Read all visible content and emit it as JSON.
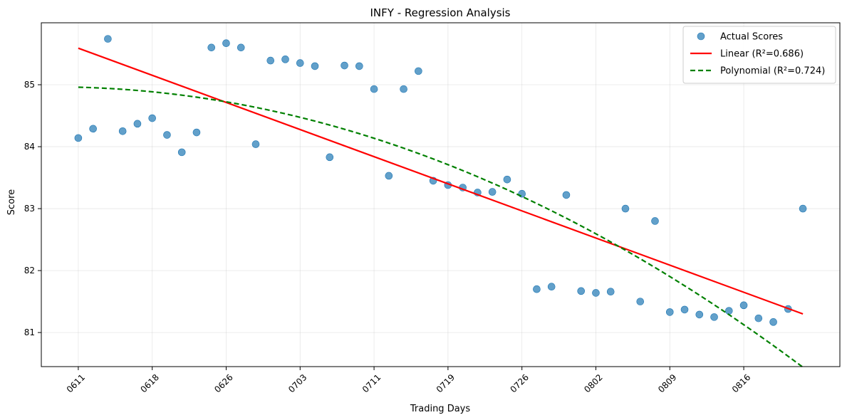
{
  "chart_data": {
    "type": "scatter",
    "title": "INFY - Regression Analysis",
    "xlabel": "Trading Days",
    "ylabel": "Score",
    "x_tick_labels": [
      "0611",
      "0618",
      "0626",
      "0703",
      "0711",
      "0719",
      "0726",
      "0802",
      "0809",
      "0816"
    ],
    "x_tick_positions": [
      0,
      5,
      10,
      15,
      20,
      25,
      30,
      35,
      40,
      45
    ],
    "xlim": [
      -2.5,
      51.5
    ],
    "y_ticks": [
      81,
      82,
      83,
      84,
      85
    ],
    "ylim": [
      80.45,
      86.0
    ],
    "grid": true,
    "legend_position": "top-right",
    "series": [
      {
        "name": "Actual Scores",
        "kind": "scatter",
        "color": "#1f77b4",
        "x": [
          0,
          1,
          2,
          3,
          4,
          5,
          6,
          7,
          8,
          9,
          10,
          11,
          12,
          13,
          14,
          15,
          16,
          17,
          18,
          19,
          20,
          21,
          22,
          23,
          24,
          25,
          26,
          27,
          28,
          29,
          30,
          31,
          32,
          33,
          34,
          35,
          36,
          37,
          38,
          39,
          40,
          41,
          42,
          43,
          44,
          45,
          46,
          47,
          48,
          49
        ],
        "y": [
          84.14,
          84.29,
          85.74,
          84.25,
          84.37,
          84.46,
          84.19,
          83.91,
          84.23,
          85.6,
          85.67,
          85.6,
          84.04,
          85.39,
          85.41,
          85.35,
          85.3,
          83.83,
          85.31,
          85.3,
          84.93,
          83.53,
          84.93,
          85.22,
          83.45,
          83.38,
          83.34,
          83.26,
          83.27,
          83.47,
          83.24,
          81.7,
          81.74,
          83.22,
          81.67,
          81.64,
          81.66,
          83.0,
          81.5,
          82.8,
          81.33,
          81.37,
          81.29,
          81.25,
          81.35,
          81.44,
          81.23,
          81.17,
          81.38,
          83.0
        ]
      },
      {
        "name": "Linear (R²=0.686)",
        "kind": "line",
        "color": "#ff0000",
        "style": "solid",
        "x": [
          0,
          49
        ],
        "y": [
          85.59,
          81.3
        ]
      },
      {
        "name": "Polynomial (R²=0.724)",
        "kind": "line",
        "color": "#008000",
        "style": "dashed",
        "poly_coeffs": [
          84.96,
          -0.006,
          -0.00176
        ]
      }
    ]
  }
}
